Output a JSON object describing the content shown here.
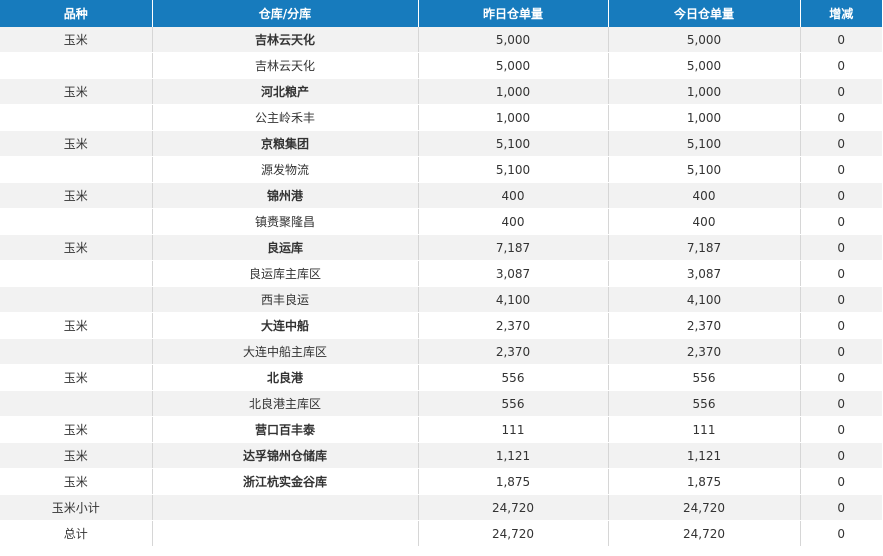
{
  "header": {
    "variety": "品种",
    "warehouse": "仓库/分库",
    "yesterday": "昨日仓单量",
    "today": "今日仓单量",
    "change": "增减"
  },
  "rows": [
    {
      "variety": "玉米",
      "warehouse": "吉林云天化",
      "yesterday": "5,000",
      "today": "5,000",
      "change": "0",
      "bold": true
    },
    {
      "variety": "",
      "warehouse": "吉林云天化",
      "yesterday": "5,000",
      "today": "5,000",
      "change": "0",
      "bold": false
    },
    {
      "variety": "玉米",
      "warehouse": "河北粮产",
      "yesterday": "1,000",
      "today": "1,000",
      "change": "0",
      "bold": true
    },
    {
      "variety": "",
      "warehouse": "公主岭禾丰",
      "yesterday": "1,000",
      "today": "1,000",
      "change": "0",
      "bold": false
    },
    {
      "variety": "玉米",
      "warehouse": "京粮集团",
      "yesterday": "5,100",
      "today": "5,100",
      "change": "0",
      "bold": true
    },
    {
      "variety": "",
      "warehouse": "源发物流",
      "yesterday": "5,100",
      "today": "5,100",
      "change": "0",
      "bold": false
    },
    {
      "variety": "玉米",
      "warehouse": "锦州港",
      "yesterday": "400",
      "today": "400",
      "change": "0",
      "bold": true
    },
    {
      "variety": "",
      "warehouse": "镇赉聚隆昌",
      "yesterday": "400",
      "today": "400",
      "change": "0",
      "bold": false
    },
    {
      "variety": "玉米",
      "warehouse": "良运库",
      "yesterday": "7,187",
      "today": "7,187",
      "change": "0",
      "bold": true
    },
    {
      "variety": "",
      "warehouse": "良运库主库区",
      "yesterday": "3,087",
      "today": "3,087",
      "change": "0",
      "bold": false
    },
    {
      "variety": "",
      "warehouse": "西丰良运",
      "yesterday": "4,100",
      "today": "4,100",
      "change": "0",
      "bold": false
    },
    {
      "variety": "玉米",
      "warehouse": "大连中船",
      "yesterday": "2,370",
      "today": "2,370",
      "change": "0",
      "bold": true
    },
    {
      "variety": "",
      "warehouse": "大连中船主库区",
      "yesterday": "2,370",
      "today": "2,370",
      "change": "0",
      "bold": false
    },
    {
      "variety": "玉米",
      "warehouse": "北良港",
      "yesterday": "556",
      "today": "556",
      "change": "0",
      "bold": true
    },
    {
      "variety": "",
      "warehouse": "北良港主库区",
      "yesterday": "556",
      "today": "556",
      "change": "0",
      "bold": false
    },
    {
      "variety": "玉米",
      "warehouse": "营口百丰泰",
      "yesterday": "111",
      "today": "111",
      "change": "0",
      "bold": true
    },
    {
      "variety": "玉米",
      "warehouse": "达孚锦州仓储库",
      "yesterday": "1,121",
      "today": "1,121",
      "change": "0",
      "bold": true
    },
    {
      "variety": "玉米",
      "warehouse": "浙江杭实金谷库",
      "yesterday": "1,875",
      "today": "1,875",
      "change": "0",
      "bold": true
    },
    {
      "variety": "玉米小计",
      "warehouse": "",
      "yesterday": "24,720",
      "today": "24,720",
      "change": "0",
      "bold": false
    },
    {
      "variety": "总计",
      "warehouse": "",
      "yesterday": "24,720",
      "today": "24,720",
      "change": "0",
      "bold": false
    }
  ]
}
